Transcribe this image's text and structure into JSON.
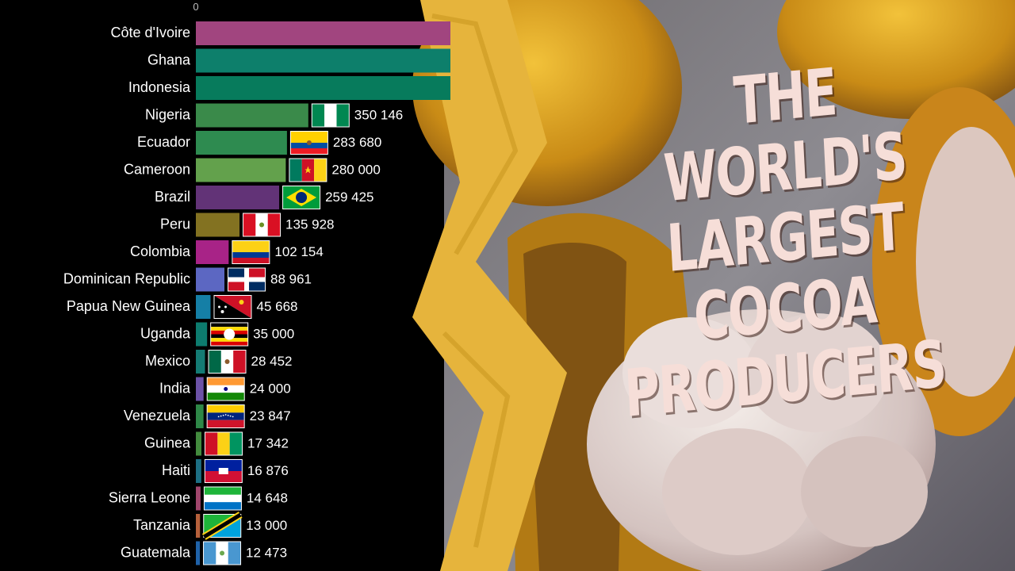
{
  "title": {
    "lines": [
      "THE",
      "WORLD'S",
      "LARGEST",
      "COCOA",
      "PRODUCERS"
    ]
  },
  "colors": {
    "background": "#000000",
    "brush_stroke": "#e6b43c",
    "title_text": "#f6ded8"
  },
  "chart_data": {
    "type": "bar",
    "orientation": "horizontal",
    "axis_tick_labels": [
      "0"
    ],
    "xlim": [
      0,
      1300000
    ],
    "grid": false,
    "legend": "none",
    "categories": [
      "Côte d'Ivoire",
      "Ghana",
      "Indonesia",
      "Nigeria",
      "Ecuador",
      "Cameroon",
      "Brazil",
      "Peru",
      "Colombia",
      "Dominican Republic",
      "Papua New Guinea",
      "Uganda",
      "Mexico",
      "India",
      "Venezuela",
      "Guinea",
      "Haiti",
      "Sierra Leone",
      "Tanzania",
      "Guatemala"
    ],
    "values": [
      null,
      null,
      null,
      350146,
      283680,
      280000,
      259425,
      135928,
      102154,
      88961,
      45668,
      35000,
      28452,
      24000,
      23847,
      17342,
      16876,
      14648,
      13000,
      12473
    ],
    "value_labels": [
      "",
      "",
      "",
      "350 146",
      "283 680",
      "280 000",
      "259 425",
      "135 928",
      "102 154",
      "88 961",
      "45 668",
      "35 000",
      "28 452",
      "24 000",
      "23 847",
      "17 342",
      "16 876",
      "14 648",
      "13 000",
      "12 473"
    ],
    "bar_colors": [
      "#a1457f",
      "#0d7f6b",
      "#077b5c",
      "#3a8a4a",
      "#2e8b50",
      "#63a14c",
      "#623377",
      "#837221",
      "#a82387",
      "#5c67c2",
      "#157fa6",
      "#0d7c6f",
      "#147b74",
      "#6c52a6",
      "#2e8747",
      "#438b3e",
      "#1d6f84",
      "#a0456c",
      "#b6603b",
      "#1f62a8"
    ],
    "flags": [
      "cote-divoire-flag",
      "ghana-flag",
      "indonesia-flag",
      "nigeria-flag",
      "ecuador-flag",
      "cameroon-flag",
      "brazil-flag",
      "peru-flag",
      "colombia-flag",
      "dominican-republic-flag",
      "papua-new-guinea-flag",
      "uganda-flag",
      "mexico-flag",
      "india-flag",
      "venezuela-flag",
      "guinea-flag",
      "haiti-flag",
      "sierra-leone-flag",
      "tanzania-flag",
      "guatemala-flag"
    ]
  }
}
